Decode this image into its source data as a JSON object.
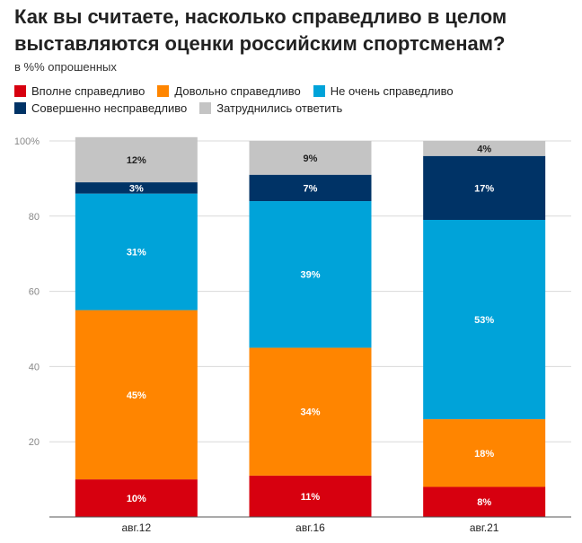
{
  "chart_data": {
    "type": "bar",
    "stacked": true,
    "title": "Как вы считаете, насколько справедливо в целом выставляются оценки российским спортсменам?",
    "subtitle": "в %% опрошенных",
    "categories": [
      "авг.12",
      "авг.16",
      "авг.21"
    ],
    "ylim": [
      0,
      100
    ],
    "yticks": [
      "0",
      "20",
      "40",
      "60",
      "80",
      "100%"
    ],
    "series": [
      {
        "name": "Вполне справедливо",
        "color": "#d7000f",
        "values": [
          10,
          11,
          8
        ],
        "labels": [
          "10%",
          "11%",
          "8%"
        ]
      },
      {
        "name": "Довольно справедливо",
        "color": "#ff8500",
        "values": [
          45,
          34,
          18
        ],
        "labels": [
          "45%",
          "34%",
          "18%"
        ]
      },
      {
        "name": "Не очень справедливо",
        "color": "#00a3d9",
        "values": [
          31,
          39,
          53
        ],
        "labels": [
          "31%",
          "39%",
          "53%"
        ]
      },
      {
        "name": "Совершенно несправедливо",
        "color": "#003366",
        "values": [
          3,
          7,
          17
        ],
        "labels": [
          "3%",
          "7%",
          "17%"
        ]
      },
      {
        "name": "Затруднились ответить",
        "color": "#c4c4c4",
        "values": [
          12,
          9,
          4
        ],
        "labels": [
          "12%",
          "9%",
          "4%"
        ]
      }
    ],
    "legend_rows": [
      [
        0,
        1,
        2
      ],
      [
        3,
        4
      ]
    ]
  }
}
